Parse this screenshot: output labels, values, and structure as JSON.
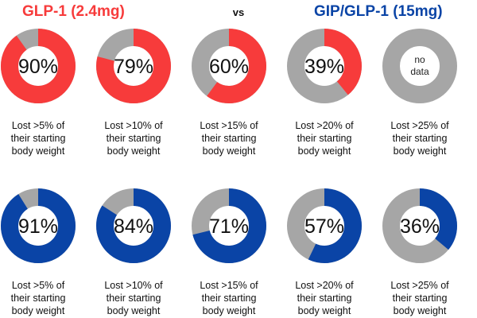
{
  "header": {
    "left_title": "GLP-1 (2.4mg)",
    "vs": "vs",
    "right_title": "GIP/GLP-1 (15mg)"
  },
  "colors": {
    "glp1": "#f73b3b",
    "gip": "#0a44a6",
    "track": "#a6a6a6"
  },
  "chart_data": [
    {
      "type": "donut",
      "series_name": "GLP-1 (2.4mg)",
      "color": "#f73b3b",
      "items": [
        {
          "value": 90,
          "label": "90%",
          "line1": "Lost >5% of",
          "line2": "their starting",
          "line3": "body weight"
        },
        {
          "value": 79,
          "label": "79%",
          "line1": "Lost >10% of",
          "line2": "their starting",
          "line3": "body weight"
        },
        {
          "value": 60,
          "label": "60%",
          "line1": "Lost >15% of",
          "line2": "their starting",
          "line3": "body weight"
        },
        {
          "value": 39,
          "label": "39%",
          "line1": "Lost >20% of",
          "line2": "their starting",
          "line3": "body weight"
        },
        {
          "value": null,
          "label": "no data",
          "line1": "Lost >25% of",
          "line2": "their starting",
          "line3": "body weight"
        }
      ]
    },
    {
      "type": "donut",
      "series_name": "GIP/GLP-1 (15mg)",
      "color": "#0a44a6",
      "items": [
        {
          "value": 91,
          "label": "91%",
          "line1": "Lost >5% of",
          "line2": "their starting",
          "line3": "body weight"
        },
        {
          "value": 84,
          "label": "84%",
          "line1": "Lost >10% of",
          "line2": "their starting",
          "line3": "body weight"
        },
        {
          "value": 71,
          "label": "71%",
          "line1": "Lost >15% of",
          "line2": "their starting",
          "line3": "body weight"
        },
        {
          "value": 57,
          "label": "57%",
          "line1": "Lost >20% of",
          "line2": "their starting",
          "line3": "body weight"
        },
        {
          "value": 36,
          "label": "36%",
          "line1": "Lost >25% of",
          "line2": "their starting",
          "line3": "body weight"
        }
      ]
    }
  ]
}
